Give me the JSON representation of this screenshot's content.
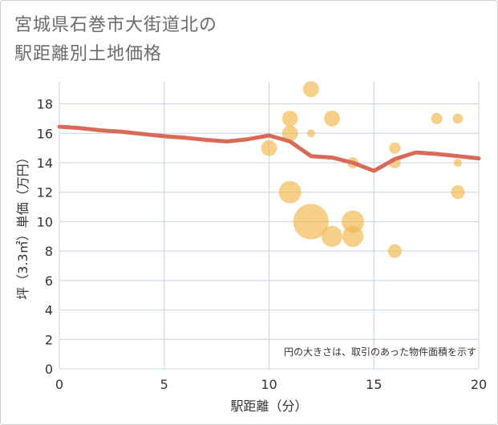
{
  "title_line1": "宮城県石巻市大街道北の",
  "title_line2": "駅距離別土地価格",
  "colors": {
    "bubble": "#f1b84f",
    "line": "#d86a57",
    "grid": "#c5d3e3",
    "plot_bg": "#ffffff",
    "axis": "#333333"
  },
  "chart_data": {
    "type": "scatter",
    "xlabel": "駅距離（分）",
    "ylabel": "坪（3.3㎡）単価（万円）",
    "xlim": [
      0,
      20
    ],
    "ylim": [
      0,
      19.5
    ],
    "xticks": [
      0,
      5,
      10,
      15,
      20
    ],
    "yticks": [
      0,
      2,
      4,
      6,
      8,
      10,
      12,
      14,
      16,
      18
    ],
    "note": "円の大きさは、取引のあった物件面積を示す",
    "bubbles": [
      {
        "x": 10,
        "y": 15,
        "size": 2
      },
      {
        "x": 11,
        "y": 17,
        "size": 2
      },
      {
        "x": 11,
        "y": 16,
        "size": 2
      },
      {
        "x": 11,
        "y": 12,
        "size": 4
      },
      {
        "x": 12,
        "y": 19,
        "size": 2
      },
      {
        "x": 12,
        "y": 16,
        "size": 0.5
      },
      {
        "x": 12,
        "y": 10,
        "size": 10
      },
      {
        "x": 13,
        "y": 17,
        "size": 2
      },
      {
        "x": 13,
        "y": 9,
        "size": 3.5
      },
      {
        "x": 14,
        "y": 14,
        "size": 1
      },
      {
        "x": 14,
        "y": 10,
        "size": 4
      },
      {
        "x": 14,
        "y": 9,
        "size": 3.5
      },
      {
        "x": 16,
        "y": 15,
        "size": 1
      },
      {
        "x": 16,
        "y": 14,
        "size": 1
      },
      {
        "x": 16,
        "y": 8,
        "size": 1.5
      },
      {
        "x": 18,
        "y": 17,
        "size": 1
      },
      {
        "x": 19,
        "y": 17,
        "size": 0.8
      },
      {
        "x": 19,
        "y": 14,
        "size": 0.5
      },
      {
        "x": 19,
        "y": 12,
        "size": 1.5
      }
    ],
    "trend_line": {
      "x": [
        0,
        1,
        2,
        3,
        4,
        5,
        6,
        7,
        8,
        9,
        10,
        11,
        12,
        13,
        14,
        15,
        16,
        17,
        18,
        19,
        20
      ],
      "y": [
        16.45,
        16.35,
        16.2,
        16.1,
        15.95,
        15.8,
        15.7,
        15.55,
        15.45,
        15.6,
        15.85,
        15.45,
        14.45,
        14.35,
        14.0,
        13.45,
        14.25,
        14.7,
        14.6,
        14.45,
        14.3
      ]
    }
  }
}
